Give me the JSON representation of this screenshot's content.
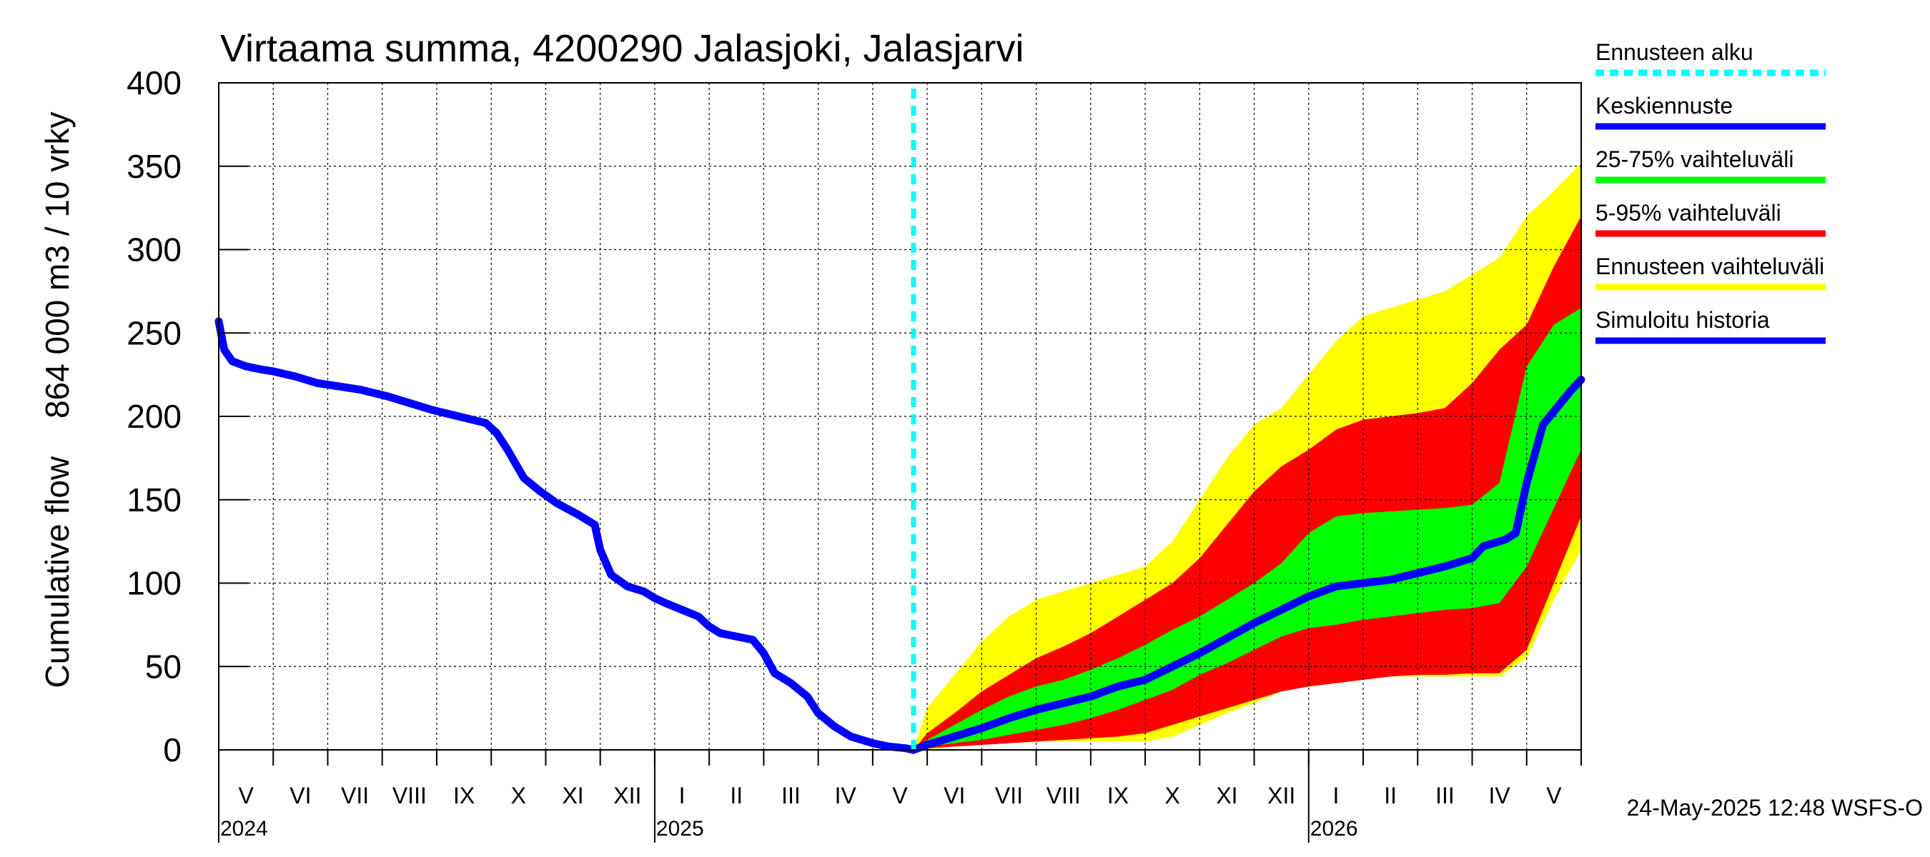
{
  "chart_data": {
    "type": "area",
    "title": "Virtaama summa, 4200290 Jalasjoki, Jalasjarvi",
    "ylabel_top": "864 000 m3 / 10 vrky",
    "ylabel_bottom": "Cumulative flow",
    "ylim": [
      0,
      400
    ],
    "yticks": [
      0,
      50,
      100,
      150,
      200,
      250,
      300,
      350,
      400
    ],
    "x_unit": "months since 2024-05-01",
    "xlim": [
      0,
      25
    ],
    "month_labels": [
      "V",
      "VI",
      "VII",
      "VIII",
      "IX",
      "X",
      "XI",
      "XII",
      "I",
      "II",
      "III",
      "IV",
      "V",
      "VI",
      "VII",
      "VIII",
      "IX",
      "X",
      "XI",
      "XII",
      "I",
      "II",
      "III",
      "IV",
      "V"
    ],
    "year_labels": [
      {
        "label": "2024",
        "at_month": 0
      },
      {
        "label": "2025",
        "at_month": 8
      },
      {
        "label": "2026",
        "at_month": 20
      }
    ],
    "forecast_start": 12.75,
    "series": [
      {
        "name": "Simuloitu historia",
        "color": "#0000ff",
        "x": [
          0,
          0.1,
          0.25,
          0.5,
          0.8,
          1.0,
          1.4,
          1.8,
          2.2,
          2.6,
          3.1,
          3.5,
          3.9,
          4.4,
          4.9,
          5.1,
          5.3,
          5.6,
          5.9,
          6.2,
          6.6,
          6.9,
          7.0,
          7.2,
          7.5,
          7.8,
          8.0,
          8.2,
          8.5,
          8.8,
          9.0,
          9.2,
          9.5,
          9.8,
          10.0,
          10.2,
          10.5,
          10.8,
          11.0,
          11.3,
          11.6,
          12.0,
          12.3,
          12.6,
          12.75
        ],
        "values": [
          257,
          240,
          233,
          230,
          228,
          227,
          224,
          220,
          218,
          216,
          212,
          208,
          204,
          200,
          196,
          190,
          180,
          163,
          155,
          148,
          141,
          135,
          120,
          105,
          98,
          95,
          91,
          88,
          84,
          80,
          74,
          70,
          68,
          66,
          58,
          46,
          40,
          32,
          22,
          14,
          8,
          4,
          2,
          1,
          0
        ]
      },
      {
        "name": "Keskiennuste",
        "color": "#0000ff",
        "x": [
          12.75,
          13.0,
          13.5,
          14.0,
          14.5,
          15.0,
          15.5,
          16.0,
          16.5,
          17.0,
          17.5,
          18.0,
          18.5,
          19.0,
          19.5,
          20.0,
          20.5,
          21.0,
          21.5,
          22.0,
          22.5,
          23.0,
          23.2,
          23.4,
          23.6,
          23.8,
          24.0,
          24.3,
          24.6,
          24.8,
          25.0
        ],
        "values": [
          0,
          3,
          8,
          13,
          19,
          24,
          28,
          32,
          38,
          42,
          50,
          58,
          67,
          76,
          84,
          92,
          98,
          100,
          102,
          106,
          110,
          115,
          122,
          124,
          126,
          130,
          160,
          195,
          207,
          215,
          222
        ]
      }
    ],
    "bands": [
      {
        "name": "Ennusteen vaihteluväli",
        "color": "#ffff00",
        "x": [
          12.75,
          13.0,
          13.5,
          14.0,
          14.5,
          15.0,
          15.5,
          16.0,
          16.5,
          17.0,
          17.5,
          18.0,
          18.5,
          19.0,
          19.5,
          20.0,
          20.5,
          21.0,
          21.5,
          22.0,
          22.5,
          23.0,
          23.5,
          24.0,
          24.5,
          25.0
        ],
        "upper": [
          0,
          25,
          45,
          65,
          80,
          90,
          95,
          100,
          105,
          110,
          125,
          150,
          175,
          195,
          205,
          225,
          245,
          260,
          265,
          270,
          275,
          285,
          295,
          320,
          335,
          352
        ],
        "lower": [
          0,
          0,
          2,
          3,
          4,
          5,
          5,
          5,
          5,
          5,
          8,
          15,
          22,
          28,
          35,
          38,
          40,
          42,
          44,
          44,
          44,
          44,
          44,
          55,
          90,
          120
        ]
      },
      {
        "name": "5-95% vaihteluväli",
        "color": "#ff0000",
        "x": [
          12.75,
          13.0,
          13.5,
          14.0,
          14.5,
          15.0,
          15.5,
          16.0,
          16.5,
          17.0,
          17.5,
          18.0,
          18.5,
          19.0,
          19.5,
          20.0,
          20.5,
          21.0,
          21.5,
          22.0,
          22.5,
          23.0,
          23.5,
          24.0,
          24.5,
          25.0
        ],
        "upper": [
          0,
          10,
          22,
          35,
          45,
          55,
          62,
          70,
          80,
          90,
          100,
          115,
          135,
          155,
          170,
          180,
          192,
          198,
          200,
          202,
          205,
          220,
          240,
          255,
          290,
          320
        ],
        "lower": [
          0,
          1,
          2,
          3,
          4,
          5,
          6,
          7,
          8,
          10,
          15,
          20,
          25,
          30,
          35,
          38,
          40,
          42,
          44,
          45,
          45,
          46,
          46,
          60,
          100,
          140
        ]
      },
      {
        "name": "25-75% vaihteluväli",
        "color": "#00ff00",
        "x": [
          12.75,
          13.0,
          13.5,
          14.0,
          14.5,
          15.0,
          15.5,
          16.0,
          16.5,
          17.0,
          17.5,
          18.0,
          18.5,
          19.0,
          19.5,
          20.0,
          20.5,
          21.0,
          21.5,
          22.0,
          22.5,
          23.0,
          23.5,
          24.0,
          24.5,
          25.0
        ],
        "upper": [
          0,
          6,
          15,
          24,
          32,
          38,
          42,
          48,
          55,
          63,
          72,
          80,
          90,
          100,
          112,
          130,
          140,
          142,
          143,
          144,
          145,
          147,
          160,
          230,
          255,
          265
        ],
        "lower": [
          0,
          2,
          4,
          6,
          9,
          12,
          15,
          19,
          24,
          30,
          36,
          45,
          52,
          60,
          68,
          73,
          75,
          78,
          80,
          82,
          84,
          85,
          88,
          110,
          145,
          180
        ]
      }
    ],
    "legend": [
      {
        "label": "Ennusteen alku",
        "color": "#00ffff",
        "style": "dashed"
      },
      {
        "label": "Keskiennuste",
        "color": "#0000ff",
        "style": "solid"
      },
      {
        "label": "25-75% vaihteluväli",
        "color": "#00ff00",
        "style": "solid"
      },
      {
        "label": "5-95% vaihteluväli",
        "color": "#ff0000",
        "style": "solid"
      },
      {
        "label": "Ennusteen vaihteluväli",
        "color": "#ffff00",
        "style": "solid"
      },
      {
        "label": "Simuloitu historia",
        "color": "#0000ff",
        "style": "solid"
      }
    ],
    "footer": "24-May-2025 12:48 WSFS-O"
  }
}
